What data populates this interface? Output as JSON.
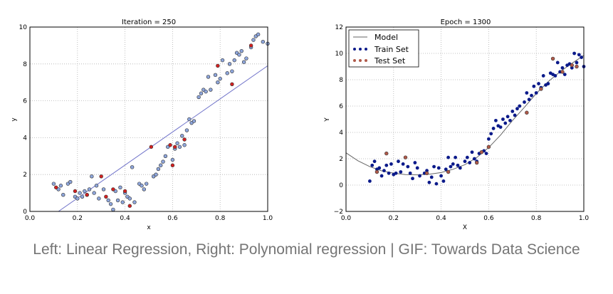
{
  "caption": "Left: Linear Regression, Right: Polynomial regression | GIF: Towards Data Science",
  "chart_data": [
    {
      "type": "scatter",
      "title": "Iteration = 250",
      "xlabel": "x",
      "ylabel": "y",
      "xlim": [
        0.0,
        1.0
      ],
      "ylim": [
        0,
        10
      ],
      "xticks": [
        "0.0",
        "0.2",
        "0.4",
        "0.6",
        "0.8",
        "1.0"
      ],
      "yticks": [
        "0",
        "2",
        "4",
        "6",
        "8",
        "10"
      ],
      "grid": true,
      "colors": {
        "train": "#8ea6dc",
        "test": "#d42020",
        "line": "#6f72c9"
      },
      "line": {
        "x": [
          0.12,
          1.0
        ],
        "y": [
          0.0,
          7.9
        ]
      },
      "train": {
        "x": [
          0.1,
          0.12,
          0.13,
          0.14,
          0.16,
          0.17,
          0.19,
          0.2,
          0.21,
          0.22,
          0.23,
          0.24,
          0.25,
          0.26,
          0.27,
          0.28,
          0.29,
          0.31,
          0.33,
          0.34,
          0.35,
          0.36,
          0.37,
          0.38,
          0.39,
          0.4,
          0.41,
          0.42,
          0.43,
          0.44,
          0.46,
          0.47,
          0.48,
          0.49,
          0.52,
          0.53,
          0.54,
          0.55,
          0.56,
          0.57,
          0.58,
          0.6,
          0.61,
          0.62,
          0.63,
          0.64,
          0.65,
          0.66,
          0.67,
          0.68,
          0.69,
          0.71,
          0.72,
          0.73,
          0.74,
          0.75,
          0.76,
          0.78,
          0.79,
          0.8,
          0.81,
          0.83,
          0.84,
          0.85,
          0.86,
          0.87,
          0.88,
          0.89,
          0.9,
          0.91,
          0.93,
          0.94,
          0.95,
          0.96,
          0.98,
          1.0
        ],
        "y": [
          1.5,
          1.2,
          1.4,
          0.9,
          1.5,
          1.6,
          0.8,
          0.7,
          1.0,
          0.8,
          1.1,
          0.9,
          1.2,
          1.9,
          1.0,
          1.4,
          0.7,
          1.2,
          0.6,
          0.4,
          0.1,
          1.1,
          0.6,
          1.3,
          0.5,
          1.0,
          0.8,
          0.7,
          2.4,
          0.5,
          1.5,
          1.4,
          1.2,
          1.5,
          1.9,
          2.0,
          2.3,
          2.5,
          2.7,
          3.0,
          3.5,
          2.8,
          3.4,
          3.7,
          3.5,
          4.1,
          3.6,
          4.4,
          5.0,
          4.8,
          4.9,
          6.2,
          6.4,
          6.6,
          6.5,
          7.3,
          6.6,
          7.4,
          7.0,
          7.2,
          8.2,
          7.5,
          8.0,
          7.6,
          8.2,
          8.6,
          8.5,
          8.7,
          8.1,
          8.3,
          8.9,
          9.3,
          9.5,
          9.6,
          9.2,
          9.1
        ]
      },
      "test": {
        "x": [
          0.11,
          0.19,
          0.24,
          0.3,
          0.32,
          0.35,
          0.4,
          0.42,
          0.51,
          0.59,
          0.6,
          0.61,
          0.65,
          0.79,
          0.85,
          0.93
        ],
        "y": [
          1.3,
          1.1,
          0.9,
          1.9,
          0.8,
          1.2,
          1.1,
          0.3,
          3.5,
          3.6,
          2.5,
          3.5,
          3.9,
          7.9,
          6.9,
          9.0
        ]
      }
    },
    {
      "type": "scatter",
      "title": "Epoch = 1300",
      "xlabel": "X",
      "ylabel": "Y",
      "xlim": [
        0.0,
        1.0
      ],
      "ylim": [
        -2,
        12
      ],
      "xticks": [
        "0.0",
        "0.2",
        "0.4",
        "0.6",
        "0.8",
        "1.0"
      ],
      "yticks": [
        "−2",
        "0",
        "2",
        "4",
        "6",
        "8",
        "10",
        "12"
      ],
      "grid": true,
      "legend_position": "top-left",
      "legend": [
        "Model",
        "Train Set",
        "Test Set"
      ],
      "colors": {
        "train": "#0b1a8a",
        "test": "#b05a4a",
        "model": "#666666"
      },
      "model": {
        "x": [
          0.0,
          0.05,
          0.1,
          0.15,
          0.2,
          0.25,
          0.3,
          0.35,
          0.4,
          0.45,
          0.5,
          0.55,
          0.6,
          0.65,
          0.7,
          0.75,
          0.8,
          0.85,
          0.9,
          0.95,
          1.0
        ],
        "y": [
          2.45,
          1.85,
          1.4,
          1.08,
          0.9,
          0.8,
          0.78,
          0.82,
          0.95,
          1.2,
          1.55,
          2.1,
          2.85,
          3.8,
          4.9,
          5.9,
          6.95,
          7.85,
          8.6,
          9.25,
          9.85
        ]
      },
      "train": {
        "x": [
          0.1,
          0.11,
          0.12,
          0.13,
          0.14,
          0.15,
          0.16,
          0.17,
          0.18,
          0.19,
          0.2,
          0.21,
          0.22,
          0.23,
          0.24,
          0.26,
          0.27,
          0.28,
          0.29,
          0.3,
          0.31,
          0.33,
          0.34,
          0.35,
          0.36,
          0.37,
          0.38,
          0.39,
          0.4,
          0.41,
          0.42,
          0.43,
          0.44,
          0.45,
          0.46,
          0.47,
          0.48,
          0.5,
          0.51,
          0.52,
          0.53,
          0.54,
          0.55,
          0.56,
          0.57,
          0.58,
          0.59,
          0.6,
          0.61,
          0.62,
          0.63,
          0.64,
          0.65,
          0.66,
          0.67,
          0.68,
          0.69,
          0.7,
          0.71,
          0.72,
          0.73,
          0.75,
          0.76,
          0.77,
          0.78,
          0.79,
          0.8,
          0.81,
          0.82,
          0.83,
          0.84,
          0.85,
          0.86,
          0.87,
          0.88,
          0.89,
          0.9,
          0.91,
          0.92,
          0.93,
          0.94,
          0.95,
          0.96,
          0.97,
          0.98,
          0.99,
          1.0
        ],
        "y": [
          0.3,
          1.5,
          1.8,
          1.2,
          1.3,
          0.7,
          1.1,
          1.5,
          0.9,
          1.6,
          0.8,
          0.9,
          1.8,
          1.0,
          1.6,
          1.4,
          0.9,
          0.5,
          1.7,
          1.3,
          0.7,
          0.9,
          1.1,
          0.2,
          0.6,
          1.4,
          0.1,
          1.3,
          0.7,
          0.3,
          1.2,
          2.1,
          1.4,
          1.6,
          2.1,
          1.5,
          1.3,
          1.8,
          2.1,
          1.7,
          2.5,
          2.0,
          1.8,
          2.4,
          2.5,
          2.6,
          2.4,
          3.5,
          3.9,
          4.3,
          4.9,
          4.5,
          4.4,
          5.0,
          4.7,
          5.2,
          4.9,
          5.6,
          5.3,
          5.8,
          6.0,
          6.3,
          7.0,
          6.5,
          6.8,
          7.5,
          7.0,
          7.7,
          7.4,
          8.3,
          7.6,
          7.7,
          8.5,
          8.4,
          8.3,
          9.3,
          8.6,
          8.9,
          8.4,
          9.1,
          9.2,
          8.9,
          10.0,
          9.3,
          9.9,
          9.7,
          9.0
        ]
      },
      "test": {
        "x": [
          0.13,
          0.17,
          0.25,
          0.34,
          0.43,
          0.55,
          0.57,
          0.6,
          0.76,
          0.82,
          0.87,
          0.91,
          0.95,
          0.97
        ],
        "y": [
          1.0,
          2.4,
          2.1,
          0.9,
          1.0,
          1.7,
          2.5,
          2.9,
          5.5,
          7.3,
          9.6,
          8.6,
          9.1,
          9.0
        ]
      }
    }
  ]
}
